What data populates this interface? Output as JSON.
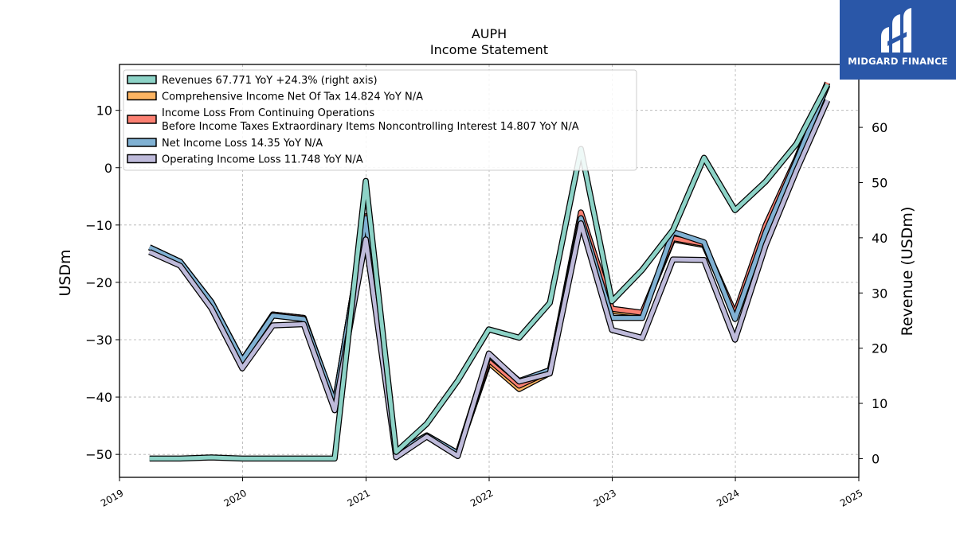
{
  "brand": {
    "name": "MIDGARD FINANCE",
    "bg_color": "#2a57a8"
  },
  "chart_data": {
    "type": "line",
    "title": "AUPH",
    "subtitle": "Income Statement",
    "ylabel": "USDm",
    "ylabel_right": "Revenue (USDm)",
    "ylim": [
      -54,
      18
    ],
    "ylim_right": [
      -3.4,
      71.4
    ],
    "xlim": [
      "2019-01-01",
      "2025-01-01"
    ],
    "xticks": [
      "2019",
      "2020",
      "2021",
      "2022",
      "2023",
      "2024",
      "2025"
    ],
    "yticks": [
      10,
      0,
      -10,
      -20,
      -30,
      -40,
      -50
    ],
    "yticks_right": [
      60,
      50,
      40,
      30,
      20,
      10,
      0
    ],
    "grid": true,
    "legend_position": "top-left",
    "dates": [
      "2019-03-31",
      "2019-06-30",
      "2019-09-30",
      "2019-12-31",
      "2020-03-31",
      "2020-06-30",
      "2020-09-30",
      "2020-12-31",
      "2021-03-31",
      "2021-06-30",
      "2021-09-30",
      "2021-12-31",
      "2022-03-31",
      "2022-06-30",
      "2022-09-30",
      "2022-12-31",
      "2023-03-31",
      "2023-06-30",
      "2023-09-30",
      "2023-12-31",
      "2024-03-31",
      "2024-06-30",
      "2024-09-30"
    ],
    "series": [
      {
        "name": "Comprehensive Income Net Of Tax",
        "legend": "Comprehensive Income Net Of Tax  14.824 YoY N/A",
        "color": "#fdb462",
        "axis": "left",
        "values": [
          -13.9,
          -16.4,
          -23.4,
          -33.6,
          -25.6,
          -26.2,
          -41.2,
          -8.5,
          -49.8,
          -46.7,
          -49.8,
          -34.0,
          -38.6,
          -35.8,
          -8.3,
          -25.0,
          -25.5,
          -12.5,
          -13.5,
          -25.6,
          -10.2,
          1.5,
          14.8
        ]
      },
      {
        "name": "Income Loss From Continuing Operations Before Income Taxes Extraordinary Items Noncontrolling Interest",
        "legend_lines": [
          "Income Loss From Continuing Operations",
          "Before Income Taxes Extraordinary Items Noncontrolling Interest  14.807 YoY N/A"
        ],
        "color": "#fb8072",
        "axis": "left",
        "values": [
          -13.9,
          -16.4,
          -23.4,
          -33.6,
          -25.6,
          -26.2,
          -41.2,
          -8.5,
          -49.8,
          -46.7,
          -49.8,
          -33.5,
          -38.0,
          -35.5,
          -7.8,
          -24.6,
          -25.3,
          -12.3,
          -13.3,
          -25.5,
          -10.0,
          1.6,
          14.8
        ]
      },
      {
        "name": "Net Income Loss",
        "legend": "Net Income Loss  14.35 YoY N/A",
        "color": "#80b1d3",
        "axis": "left",
        "values": [
          -13.9,
          -16.4,
          -23.4,
          -33.6,
          -25.8,
          -26.4,
          -41.0,
          -8.8,
          -49.8,
          -46.7,
          -49.8,
          -32.7,
          -37.2,
          -35.3,
          -8.8,
          -26.2,
          -26.2,
          -11.2,
          -13.0,
          -26.4,
          -11.2,
          1.2,
          14.35
        ]
      },
      {
        "name": "Operating Income Loss",
        "legend": "Operating Income Loss  11.748 YoY N/A",
        "color": "#bebada",
        "axis": "left",
        "values": [
          -14.7,
          -17.1,
          -24.5,
          -35.0,
          -27.5,
          -27.3,
          -42.3,
          -12.5,
          -50.5,
          -46.9,
          -50.3,
          -32.4,
          -37.3,
          -35.9,
          -9.7,
          -28.3,
          -29.7,
          -16.0,
          -16.1,
          -30.0,
          -13.5,
          -0.5,
          11.748
        ]
      },
      {
        "name": "Revenues",
        "legend": "Revenues  67.771 YoY +24.3% (right axis)",
        "color": "#8dd3c7",
        "axis": "right",
        "values": [
          0.0,
          0.0,
          0.2,
          0.0,
          0.0,
          0.0,
          0.0,
          50.3,
          1.2,
          6.3,
          14.1,
          23.4,
          21.9,
          28.2,
          56.1,
          28.5,
          34.2,
          41.4,
          54.5,
          45.0,
          50.2,
          57.0,
          67.771
        ]
      }
    ]
  }
}
